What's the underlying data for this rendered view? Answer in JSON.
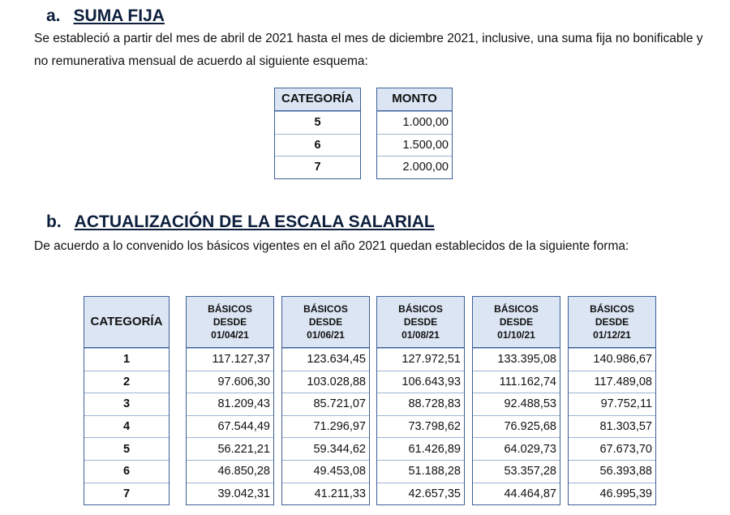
{
  "section_a": {
    "letter": "a.",
    "title": "SUMA FIJA",
    "paragraph": "Se estableció a partir del mes de abril de 2021 hasta el mes de diciembre 2021, inclusive, una suma fija no bonificable y no remunerativa mensual de acuerdo al siguiente esquema:",
    "table": {
      "headers": [
        "CATEGORÍA",
        "MONTO"
      ],
      "rows": [
        [
          "5",
          "1.000,00"
        ],
        [
          "6",
          "1.500,00"
        ],
        [
          "7",
          "2.000,00"
        ]
      ]
    }
  },
  "section_b": {
    "letter": "b.",
    "title": "ACTUALIZACIÓN DE LA ESCALA SALARIAL",
    "paragraph": "De acuerdo a lo convenido los básicos vigentes en el año 2021 quedan establecidos de la siguiente forma:",
    "table": {
      "category_header": "CATEGORÍA",
      "categories": [
        "1",
        "2",
        "3",
        "4",
        "5",
        "6",
        "7"
      ],
      "columns": [
        {
          "header": [
            "BÁSICOS",
            "DESDE",
            "01/04/21"
          ],
          "values": [
            "117.127,37",
            "97.606,30",
            "81.209,43",
            "67.544,49",
            "56.221,21",
            "46.850,28",
            "39.042,31"
          ]
        },
        {
          "header": [
            "BÁSICOS",
            "DESDE",
            "01/06/21"
          ],
          "values": [
            "123.634,45",
            "103.028,88",
            "85.721,07",
            "71.296,97",
            "59.344,62",
            "49.453,08",
            "41.211,33"
          ]
        },
        {
          "header": [
            "BÁSICOS",
            "DESDE",
            "01/08/21"
          ],
          "values": [
            "127.972,51",
            "106.643,93",
            "88.728,83",
            "73.798,62",
            "61.426,89",
            "51.188,28",
            "42.657,35"
          ]
        },
        {
          "header": [
            "BÁSICOS",
            "DESDE",
            "01/10/21"
          ],
          "values": [
            "133.395,08",
            "111.162,74",
            "92.488,53",
            "76.925,68",
            "64.029,73",
            "53.357,28",
            "44.464,87"
          ]
        },
        {
          "header": [
            "BÁSICOS",
            "DESDE",
            "01/12/21"
          ],
          "values": [
            "140.986,67",
            "117.489,08",
            "97.752,11",
            "81.303,57",
            "67.673,70",
            "56.393,88",
            "46.995,39"
          ]
        }
      ]
    }
  }
}
